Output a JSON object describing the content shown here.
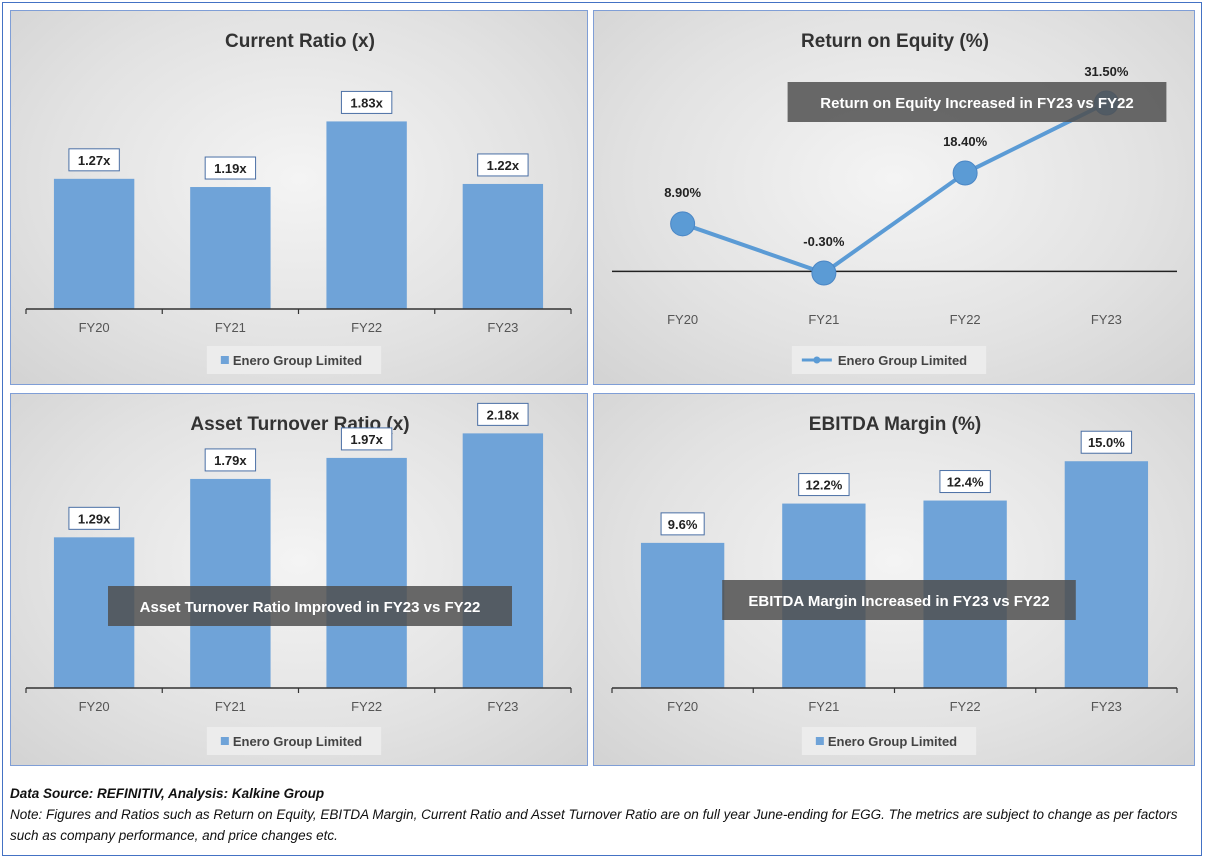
{
  "chart_data": [
    {
      "type": "bar",
      "title": "Current Ratio (x)",
      "categories": [
        "FY20",
        "FY21",
        "FY22",
        "FY23"
      ],
      "series": [
        {
          "name": "Enero Group Limited",
          "values": [
            1.27,
            1.19,
            1.83,
            1.22
          ]
        }
      ],
      "data_labels": [
        "1.27x",
        "1.19x",
        "1.83x",
        "1.22x"
      ],
      "ylim": [
        0,
        2.0
      ],
      "grid": false,
      "legend": "bottom",
      "annotation": "",
      "color": "#6fa3d8"
    },
    {
      "type": "line",
      "title": "Return on Equity (%)",
      "categories": [
        "FY20",
        "FY21",
        "FY22",
        "FY23"
      ],
      "series": [
        {
          "name": "Enero Group Limited",
          "values": [
            8.9,
            -0.3,
            18.4,
            31.5
          ]
        }
      ],
      "data_labels": [
        "8.90%",
        "-0.30%",
        "18.40%",
        "31.50%"
      ],
      "ylim": [
        -0.3,
        31.5
      ],
      "grid": false,
      "legend": "bottom",
      "annotation": "Return on Equity Increased in FY23 vs FY22",
      "color": "#5b9bd5"
    },
    {
      "type": "bar",
      "title": "Asset Turnover Ratio (x)",
      "categories": [
        "FY20",
        "FY21",
        "FY22",
        "FY23"
      ],
      "series": [
        {
          "name": "Enero Group Limited",
          "values": [
            1.29,
            1.79,
            1.97,
            2.18
          ]
        }
      ],
      "data_labels": [
        "1.29x",
        "1.79x",
        "1.97x",
        "2.18x"
      ],
      "ylim": [
        0,
        2.5
      ],
      "grid": false,
      "legend": "bottom",
      "annotation": "Asset Turnover Ratio Improved in FY23 vs FY22",
      "color": "#6fa3d8"
    },
    {
      "type": "bar",
      "title": "EBITDA Margin (%)",
      "categories": [
        "FY20",
        "FY21",
        "FY22",
        "FY23"
      ],
      "series": [
        {
          "name": "Enero Group Limited",
          "values": [
            9.6,
            12.2,
            12.4,
            15.0
          ]
        }
      ],
      "data_labels": [
        "9.6%",
        "12.2%",
        "12.4%",
        "15.0%"
      ],
      "ylim": [
        0,
        17
      ],
      "grid": false,
      "legend": "bottom",
      "annotation": "EBITDA Margin Increased in FY23 vs FY22",
      "color": "#6fa3d8"
    }
  ],
  "footer": {
    "source": "Data Source: REFINITIV, Analysis: Kalkine Group",
    "note": "Note: Figures and Ratios such as Return on Equity, EBITDA Margin, Current Ratio and Asset Turnover Ratio are on full year June-ending for EGG. The metrics are subject to change as per factors such as company performance, and price changes etc."
  }
}
